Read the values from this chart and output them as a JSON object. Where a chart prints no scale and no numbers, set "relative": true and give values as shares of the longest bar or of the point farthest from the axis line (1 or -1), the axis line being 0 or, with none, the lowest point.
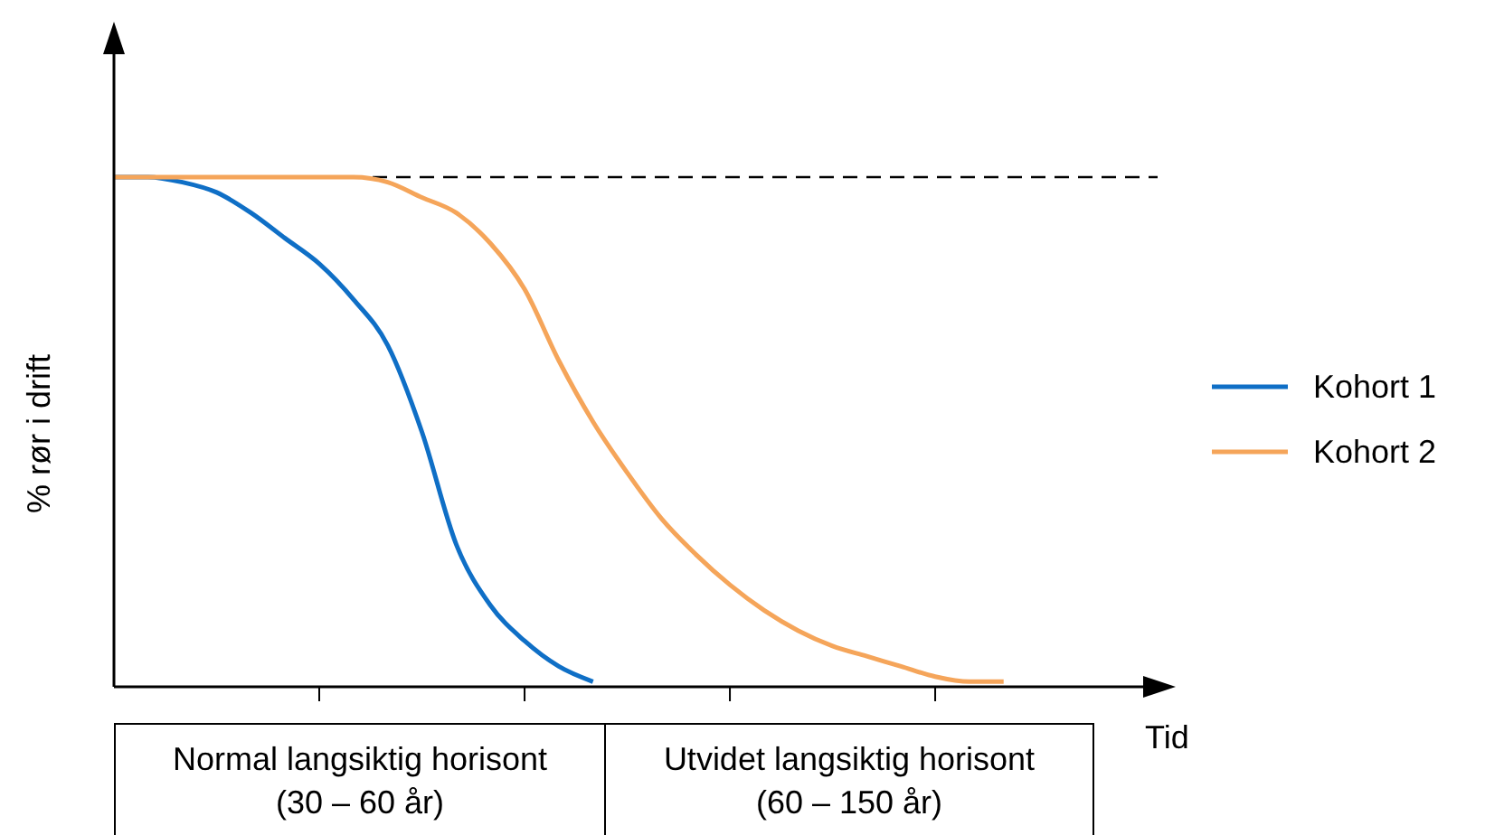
{
  "chart_data": {
    "type": "line",
    "relative": true,
    "ylabel": "% rør i drift",
    "xlabel": "Tid",
    "legend": "right",
    "categories": [
      null,
      null,
      null,
      null,
      null,
      null,
      null,
      null,
      null,
      null,
      null,
      null,
      null,
      null,
      null,
      null,
      null,
      null,
      null,
      null,
      null,
      null,
      null,
      null,
      null,
      null,
      null,
      null,
      null,
      null,
      null
    ],
    "series": [
      {
        "name": "Kohort 1",
        "color": "#0f6fc6",
        "values": [
          1,
          1,
          0.99,
          0.97,
          0.93,
          0.88,
          0.83,
          0.76,
          0.67,
          0.5,
          0.28,
          0.16,
          0.09,
          0.04,
          0.01,
          null,
          null,
          null,
          null,
          null,
          null,
          null,
          null,
          null,
          null,
          null,
          null,
          null,
          null,
          null,
          null
        ]
      },
      {
        "name": "Kohort 2",
        "color": "#f5a55a",
        "values": [
          1,
          1,
          1,
          1,
          1,
          1,
          1,
          1,
          0.99,
          0.96,
          0.93,
          0.87,
          0.78,
          0.64,
          0.52,
          0.42,
          0.33,
          0.26,
          0.2,
          0.15,
          0.11,
          0.08,
          0.06,
          0.04,
          0.02,
          0.01,
          0.01,
          null,
          null,
          null,
          null
        ]
      }
    ],
    "ref_lines": [
      {
        "axis": "y",
        "value": 1,
        "line_style": "dashed",
        "color": "#000000"
      }
    ],
    "annotations": [
      "Normal langsiktig horisont (30 – 60 år)",
      "Utvidet langsiktig horisont (60 – 150 år)"
    ]
  }
}
